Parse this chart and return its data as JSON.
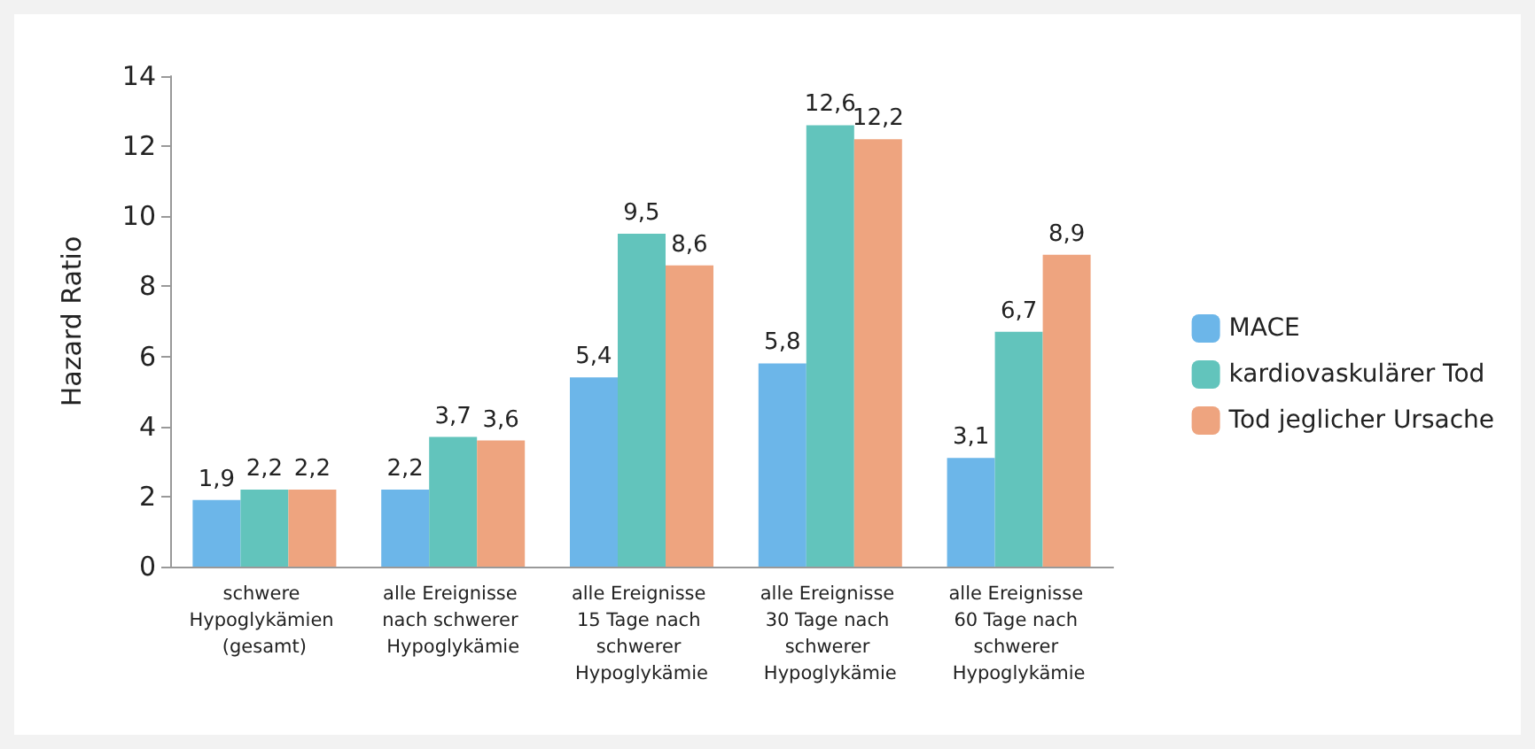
{
  "chart_data": {
    "type": "bar",
    "ylabel": "Hazard Ratio",
    "categories": [
      "schwere Hypoglykämien (gesamt)",
      "alle Ereignisse nach schwerer Hypoglykämie",
      "alle Ereignisse 15 Tage nach schwerer Hypoglykämie",
      "alle Ereignisse 30 Tage nach schwerer Hypoglykämie",
      "alle Ereignisse 60 Tage nach schwerer Hypoglykämie"
    ],
    "series": [
      {
        "name": "MACE",
        "color": "#6cb6e9",
        "values": [
          1.9,
          2.2,
          5.4,
          5.8,
          3.1
        ],
        "value_labels": [
          "1,9",
          "2,2",
          "5,4",
          "5,8",
          "3,1"
        ]
      },
      {
        "name": "kardiovaskulärer Tod",
        "color": "#62c4bc",
        "values": [
          2.2,
          3.7,
          9.5,
          12.6,
          6.7
        ],
        "value_labels": [
          "2,2",
          "3,7",
          "9,5",
          "12,6",
          "6,7"
        ]
      },
      {
        "name": "Tod jeglicher Ursache",
        "color": "#eea47f",
        "values": [
          2.2,
          3.6,
          8.6,
          12.2,
          8.9
        ],
        "value_labels": [
          "2,2",
          "3,6",
          "8,6",
          "12,2",
          "8,9"
        ]
      }
    ],
    "ylim": [
      0,
      14
    ],
    "yticks": [
      0,
      2,
      4,
      6,
      8,
      10,
      12,
      14
    ],
    "grid": false,
    "legend": "right"
  }
}
